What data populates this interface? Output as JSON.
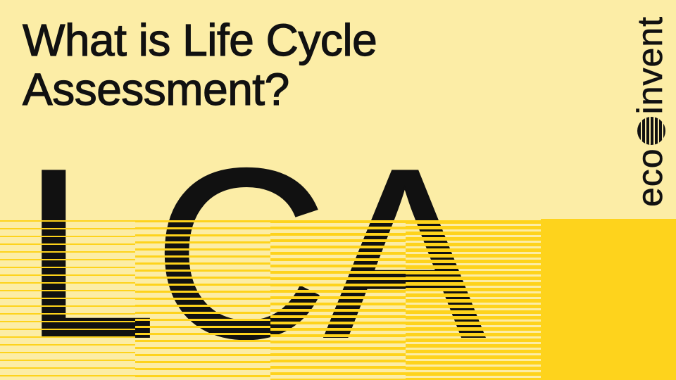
{
  "title": {
    "line1": "What is Life Cycle",
    "line2": "Assessment?"
  },
  "hero_text": "LCA",
  "logo": {
    "text_before": "eco",
    "text_after": "invent",
    "symbol_icon": "striped-circle-icon"
  },
  "colors": {
    "background": "#fceda6",
    "accent_yellow": "#fed31c",
    "ink": "#111111"
  }
}
